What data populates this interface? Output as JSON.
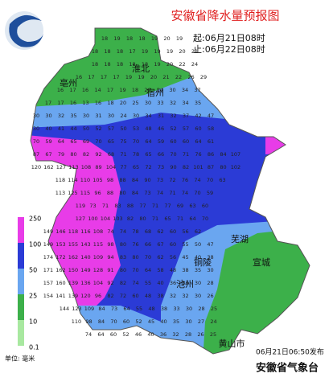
{
  "title": "安徽省降水量预报图",
  "start_time": "起:06月21日08时",
  "end_time": "止:06月22日08时",
  "issued": "06月21日06:50发布",
  "issuer": "安徽省气象台",
  "unit": "单位: 毫米",
  "legend": [
    {
      "label": "250",
      "color": "#e83ce8"
    },
    {
      "label": "100",
      "color": "#2b3bd6"
    },
    {
      "label": "50",
      "color": "#6aa6f0"
    },
    {
      "label": "25",
      "color": "#3cb04a"
    },
    {
      "label": "10",
      "color": "#a8e8a0"
    },
    {
      "label": "0.1"
    }
  ],
  "cities": [
    "淮北",
    "宿州",
    "亳州",
    "芜湖",
    "铜陵",
    "宣城",
    "池州",
    "黄山市"
  ],
  "grid": {
    "rows": [
      [
        "18",
        "19",
        "18",
        "18",
        "19",
        "20",
        "19"
      ],
      [
        "18",
        "18",
        "18",
        "17",
        "19",
        "19",
        "19",
        "20",
        "21"
      ],
      [
        "18",
        "18",
        "18",
        "18",
        "18",
        "19",
        "20",
        "22",
        "24"
      ],
      [
        "16",
        "17",
        "17",
        "17",
        "19",
        "19",
        "20",
        "21",
        "22",
        "26",
        "29"
      ],
      [
        "16",
        "17",
        "16",
        "14",
        "17",
        "19",
        "18",
        "20",
        "24",
        "30",
        "34",
        "37"
      ],
      [
        "17",
        "17",
        "16",
        "13",
        "16",
        "18",
        "20",
        "25",
        "30",
        "33",
        "32",
        "34",
        "35"
      ],
      [
        "30",
        "30",
        "32",
        "35",
        "30",
        "31",
        "30",
        "24",
        "30",
        "34",
        "31",
        "32",
        "37",
        "42",
        "47"
      ],
      [
        "30",
        "40",
        "41",
        "44",
        "50",
        "52",
        "57",
        "50",
        "53",
        "48",
        "46",
        "52",
        "57",
        "60",
        "58"
      ],
      [
        "70",
        "59",
        "64",
        "65",
        "69",
        "70",
        "65",
        "75",
        "70",
        "64",
        "59",
        "60",
        "60",
        "64",
        "61"
      ],
      [
        "87",
        "67",
        "79",
        "80",
        "82",
        "92",
        "68",
        "71",
        "78",
        "65",
        "66",
        "70",
        "71",
        "76",
        "86",
        "84",
        "107"
      ],
      [
        "120",
        "162",
        "127",
        "113",
        "108",
        "89",
        "104",
        "77",
        "65",
        "72",
        "73",
        "90",
        "82",
        "101",
        "87",
        "80",
        "102"
      ],
      [
        "118",
        "114",
        "110",
        "105",
        "98",
        "88",
        "84",
        "90",
        "73",
        "72",
        "76",
        "74",
        "70",
        "63"
      ],
      [
        "113",
        "125",
        "115",
        "96",
        "88",
        "80",
        "84",
        "73",
        "74",
        "71",
        "74",
        "70",
        "59"
      ],
      [
        "119",
        "73",
        "71",
        "83",
        "88",
        "77",
        "71",
        "77",
        "69",
        "63",
        "60"
      ],
      [
        "127",
        "100",
        "104",
        "103",
        "82",
        "80",
        "71",
        "65",
        "71",
        "64",
        "70"
      ],
      [
        "149",
        "146",
        "118",
        "116",
        "108",
        "74",
        "74",
        "78",
        "68",
        "62",
        "60",
        "56",
        "62"
      ],
      [
        "149",
        "153",
        "155",
        "143",
        "115",
        "98",
        "80",
        "76",
        "66",
        "67",
        "60",
        "55",
        "50",
        "47"
      ],
      [
        "174",
        "172",
        "162",
        "140",
        "109",
        "94",
        "83",
        "80",
        "70",
        "62",
        "56",
        "45",
        "40",
        "38"
      ],
      [
        "171",
        "162",
        "150",
        "149",
        "128",
        "91",
        "80",
        "70",
        "64",
        "58",
        "48",
        "38",
        "35",
        "30"
      ],
      [
        "157",
        "160",
        "139",
        "136",
        "104",
        "92",
        "82",
        "74",
        "55",
        "40",
        "36",
        "33",
        "30",
        "28"
      ],
      [
        "154",
        "141",
        "139",
        "120",
        "96",
        "82",
        "72",
        "60",
        "48",
        "38",
        "32",
        "32",
        "30",
        "26"
      ],
      [
        "144",
        "123",
        "109",
        "84",
        "73",
        "64",
        "55",
        "48",
        "38",
        "33",
        "30",
        "28",
        "25"
      ],
      [
        "110",
        "98",
        "84",
        "70",
        "60",
        "52",
        "45",
        "40",
        "35",
        "30",
        "27",
        "24"
      ],
      [
        "74",
        "64",
        "60",
        "52",
        "46",
        "40",
        "36",
        "32",
        "28",
        "26",
        "25"
      ]
    ]
  }
}
